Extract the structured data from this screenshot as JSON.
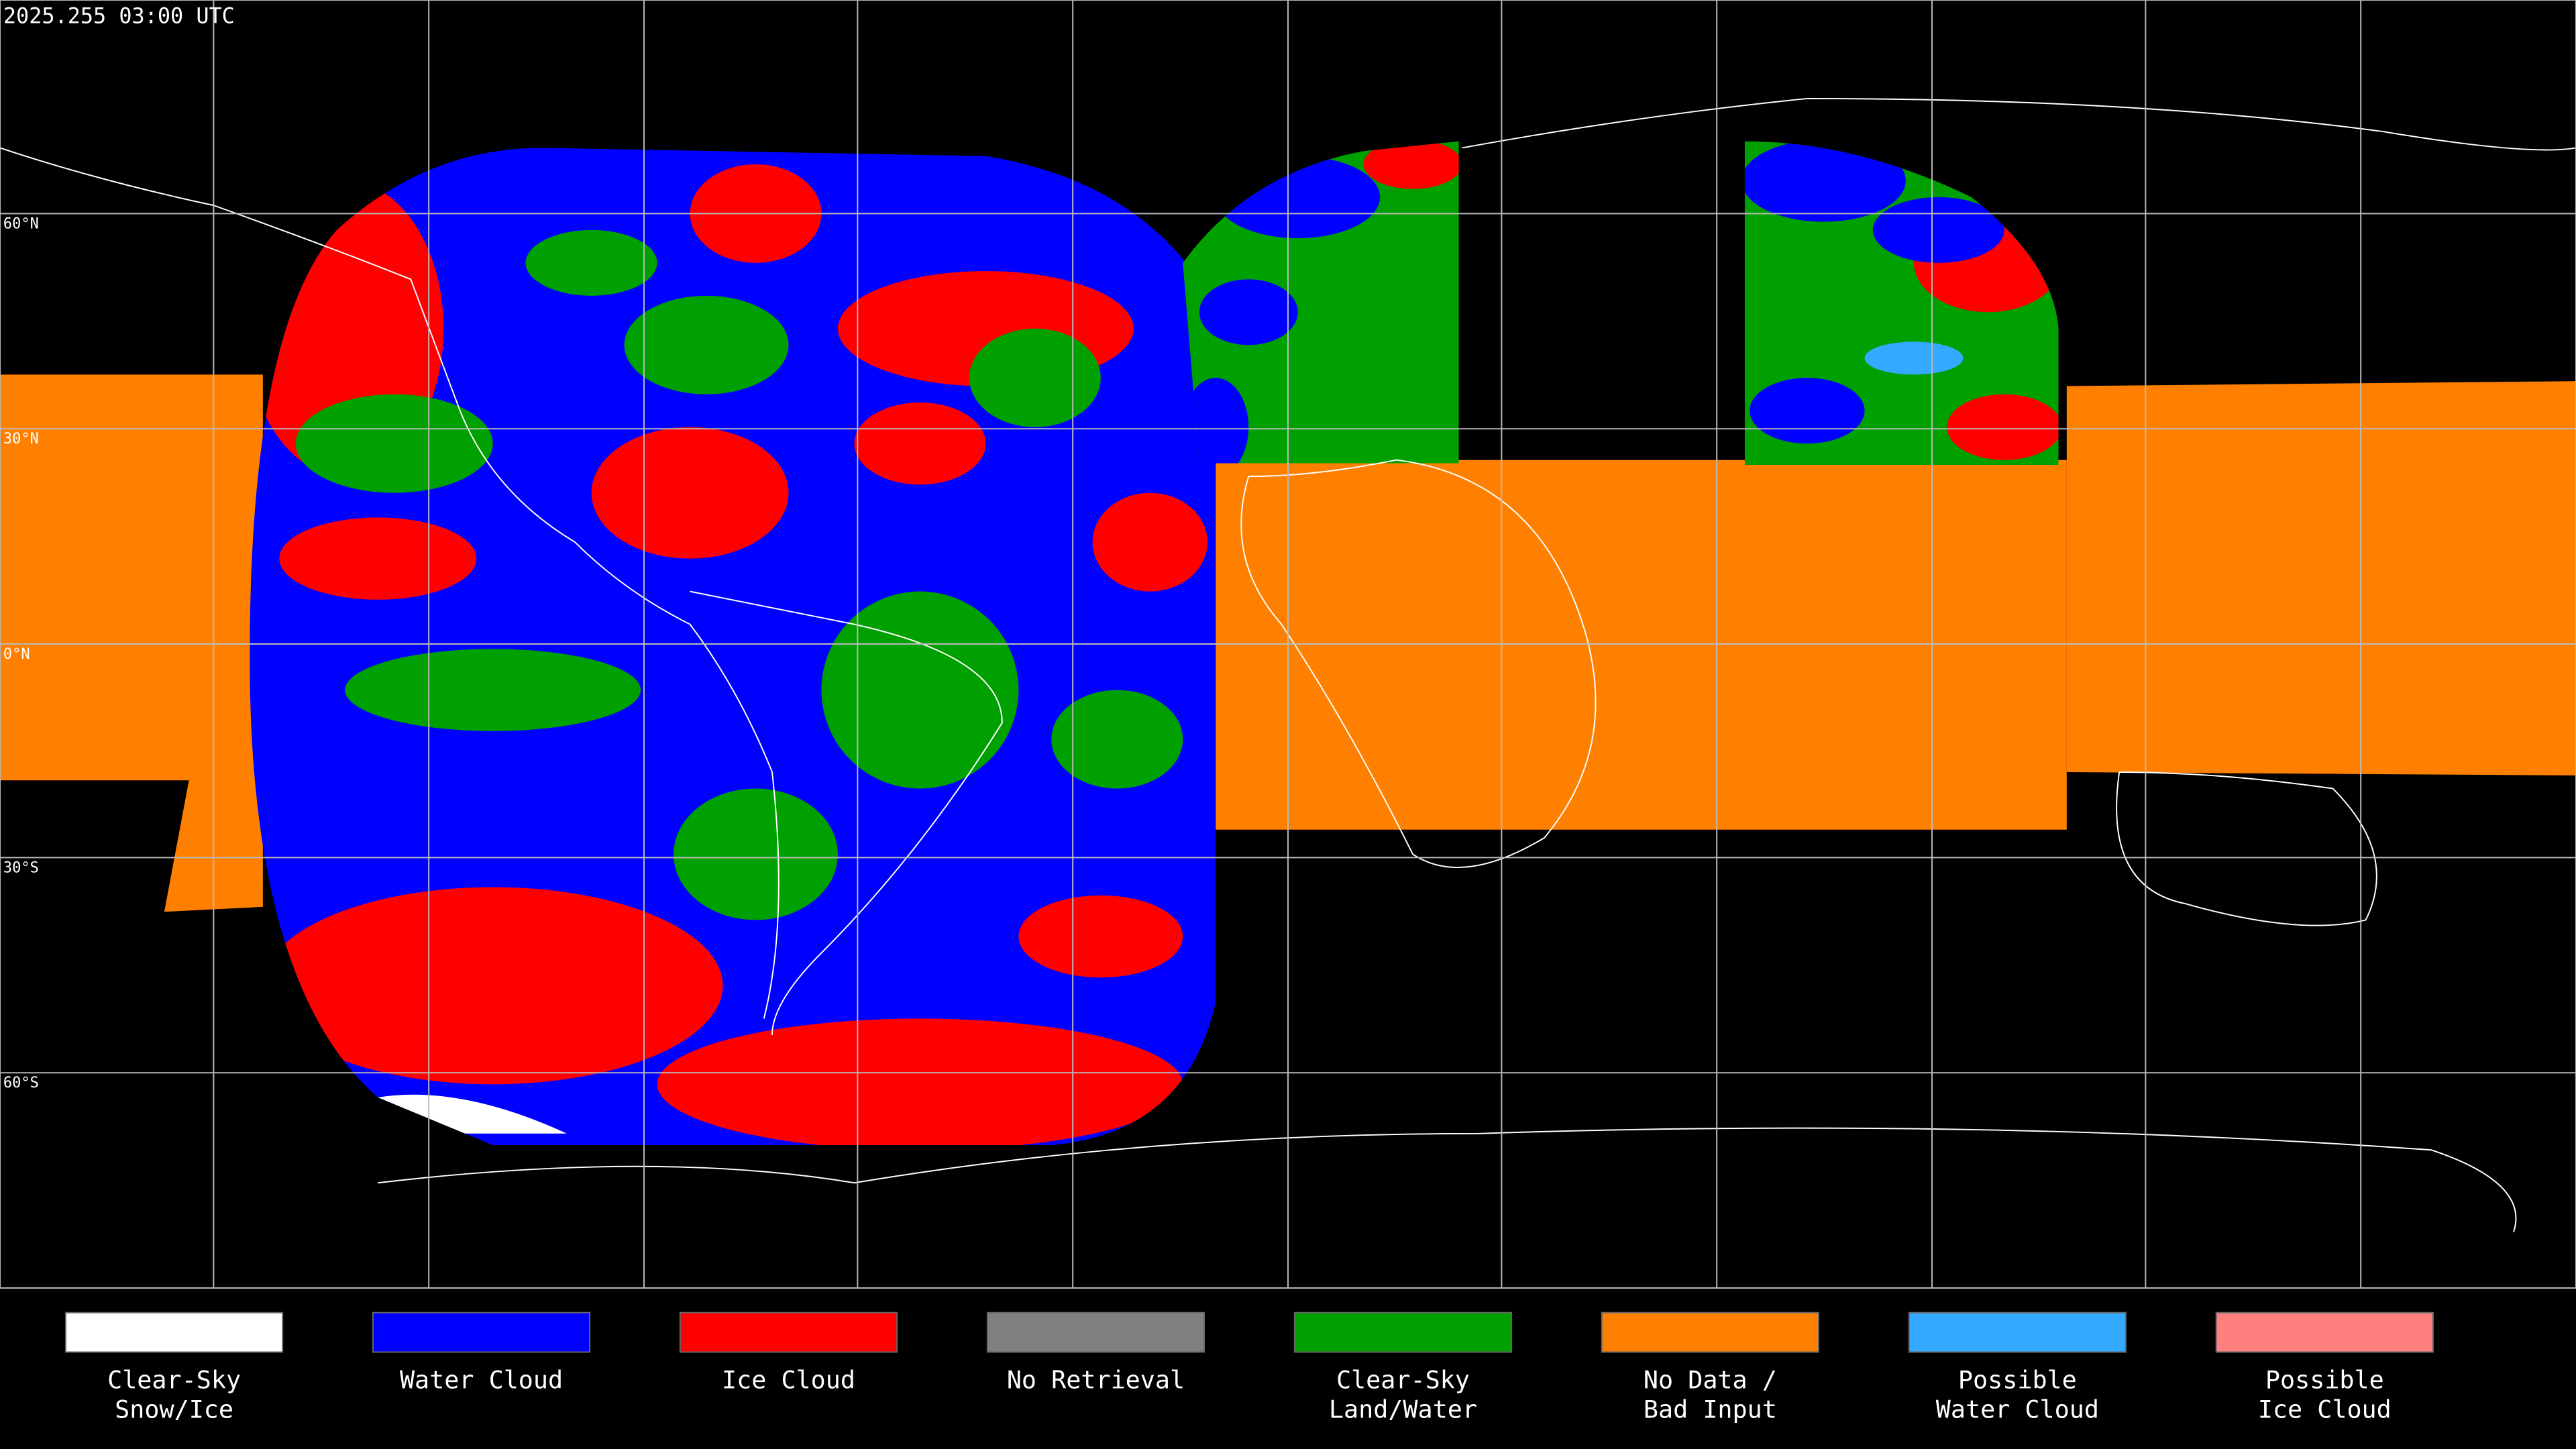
{
  "timestamp": "2025.255 03:00 UTC",
  "lat_labels": [
    "60°N",
    "30°N",
    "0°N",
    "30°S",
    "60°S"
  ],
  "legend": {
    "items": [
      {
        "label": [
          "Clear-Sky",
          "Snow/Ice"
        ],
        "color": "#ffffff"
      },
      {
        "label": [
          "Water Cloud"
        ],
        "color": "#0000ff"
      },
      {
        "label": [
          "Ice Cloud"
        ],
        "color": "#ff0000"
      },
      {
        "label": [
          "No Retrieval"
        ],
        "color": "#808080"
      },
      {
        "label": [
          "Clear-Sky",
          "Land/Water"
        ],
        "color": "#00a000"
      },
      {
        "label": [
          "No Data /",
          "Bad Input"
        ],
        "color": "#ff8000"
      },
      {
        "label": [
          "Possible",
          "Water Cloud"
        ],
        "color": "#33aaff"
      },
      {
        "label": [
          "Possible",
          "Ice Cloud"
        ],
        "color": "#ff7f7f"
      }
    ]
  }
}
